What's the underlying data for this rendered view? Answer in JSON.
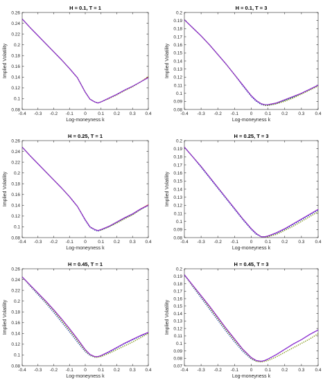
{
  "chart_data": [
    {
      "type": "line",
      "title": "H = 0.1, T = 1",
      "xlabel": "Log-moneyness k",
      "ylabel": "Implied Volatility",
      "xlim": [
        -0.4,
        0.4
      ],
      "ylim": [
        0.08,
        0.26
      ],
      "xticks": [
        "-0.4",
        "-0.3",
        "-0.2",
        "-0.1",
        "0",
        "0.1",
        "0.2",
        "0.3",
        "0.4"
      ],
      "yticks": [
        "0.08",
        "0.1",
        "0.12",
        "0.14",
        "0.16",
        "0.18",
        "0.2",
        "0.22",
        "0.24",
        "0.26"
      ],
      "grid": false,
      "x": [
        -0.4,
        -0.35,
        -0.3,
        -0.25,
        -0.2,
        -0.15,
        -0.1,
        -0.05,
        0,
        0.03,
        0.06,
        0.08,
        0.1,
        0.15,
        0.2,
        0.25,
        0.3,
        0.35,
        0.4
      ],
      "series": [
        {
          "color": "#e41a1c",
          "style": "solid",
          "values": [
            0.248,
            0.232,
            0.217,
            0.202,
            0.187,
            0.172,
            0.156,
            0.139,
            0.112,
            0.099,
            0.094,
            0.092,
            0.094,
            0.101,
            0.108,
            0.116,
            0.123,
            0.131,
            0.14
          ]
        },
        {
          "color": "#2040c0",
          "style": "dotted",
          "values": [
            0.248,
            0.232,
            0.217,
            0.202,
            0.187,
            0.172,
            0.156,
            0.139,
            0.112,
            0.099,
            0.094,
            0.092,
            0.094,
            0.101,
            0.108,
            0.116,
            0.123,
            0.131,
            0.14
          ]
        },
        {
          "color": "#2ca02c",
          "style": "dotted",
          "values": [
            0.248,
            0.232,
            0.217,
            0.202,
            0.187,
            0.172,
            0.156,
            0.139,
            0.112,
            0.099,
            0.094,
            0.092,
            0.094,
            0.1,
            0.107,
            0.115,
            0.122,
            0.131,
            0.14
          ]
        },
        {
          "color": "#9a9a20",
          "style": "dotted",
          "values": [
            0.248,
            0.232,
            0.217,
            0.202,
            0.187,
            0.172,
            0.156,
            0.139,
            0.112,
            0.099,
            0.094,
            0.092,
            0.094,
            0.1,
            0.107,
            0.115,
            0.122,
            0.131,
            0.141
          ]
        },
        {
          "color": "#8a2be2",
          "style": "solid",
          "values": [
            0.248,
            0.232,
            0.217,
            0.202,
            0.187,
            0.172,
            0.156,
            0.139,
            0.112,
            0.099,
            0.094,
            0.092,
            0.094,
            0.101,
            0.108,
            0.116,
            0.123,
            0.131,
            0.139
          ]
        }
      ]
    },
    {
      "type": "line",
      "title": "H = 0.1, T = 3",
      "xlabel": "Log-moneyness k",
      "ylabel": "Implied Volatility",
      "xlim": [
        -0.4,
        0.4
      ],
      "ylim": [
        0.08,
        0.2
      ],
      "xticks": [
        "-0.4",
        "-0.3",
        "-0.2",
        "-0.1",
        "0",
        "0.1",
        "0.2",
        "0.3",
        "0.4"
      ],
      "yticks": [
        "0.08",
        "0.09",
        "0.1",
        "0.11",
        "0.12",
        "0.13",
        "0.14",
        "0.15",
        "0.16",
        "0.17",
        "0.18",
        "0.19",
        "0.2"
      ],
      "grid": false,
      "x": [
        -0.4,
        -0.35,
        -0.3,
        -0.25,
        -0.2,
        -0.15,
        -0.1,
        -0.05,
        0,
        0.03,
        0.06,
        0.08,
        0.1,
        0.15,
        0.2,
        0.25,
        0.3,
        0.35,
        0.4
      ],
      "series": [
        {
          "color": "#e41a1c",
          "style": "solid",
          "values": [
            0.191,
            0.181,
            0.171,
            0.16,
            0.148,
            0.136,
            0.123,
            0.11,
            0.097,
            0.091,
            0.087,
            0.086,
            0.086,
            0.088,
            0.092,
            0.096,
            0.1,
            0.105,
            0.11
          ]
        },
        {
          "color": "#2040c0",
          "style": "dotted",
          "values": [
            0.191,
            0.181,
            0.171,
            0.16,
            0.148,
            0.136,
            0.123,
            0.109,
            0.096,
            0.09,
            0.086,
            0.085,
            0.085,
            0.087,
            0.091,
            0.095,
            0.1,
            0.105,
            0.11
          ]
        },
        {
          "color": "#2ca02c",
          "style": "dotted",
          "values": [
            0.191,
            0.181,
            0.171,
            0.16,
            0.148,
            0.136,
            0.123,
            0.11,
            0.097,
            0.091,
            0.087,
            0.086,
            0.085,
            0.087,
            0.091,
            0.095,
            0.099,
            0.104,
            0.109
          ]
        },
        {
          "color": "#9a9a20",
          "style": "dotted",
          "values": [
            0.191,
            0.181,
            0.171,
            0.16,
            0.148,
            0.136,
            0.123,
            0.11,
            0.097,
            0.091,
            0.087,
            0.085,
            0.085,
            0.087,
            0.09,
            0.094,
            0.099,
            0.104,
            0.109
          ]
        },
        {
          "color": "#8a2be2",
          "style": "solid",
          "values": [
            0.191,
            0.181,
            0.171,
            0.16,
            0.148,
            0.136,
            0.123,
            0.11,
            0.097,
            0.091,
            0.087,
            0.086,
            0.086,
            0.088,
            0.092,
            0.096,
            0.1,
            0.105,
            0.11
          ]
        }
      ]
    },
    {
      "type": "line",
      "title": "H = 0.25, T = 1",
      "xlabel": "Log-moneyness k",
      "ylabel": "Implied Volatility",
      "xlim": [
        -0.4,
        0.4
      ],
      "ylim": [
        0.08,
        0.26
      ],
      "xticks": [
        "-0.4",
        "-0.3",
        "-0.2",
        "-0.1",
        "0",
        "0.1",
        "0.2",
        "0.3",
        "0.4"
      ],
      "yticks": [
        "0.08",
        "0.1",
        "0.12",
        "0.14",
        "0.16",
        "0.18",
        "0.2",
        "0.22",
        "0.24",
        "0.26"
      ],
      "grid": false,
      "x": [
        -0.4,
        -0.35,
        -0.3,
        -0.25,
        -0.2,
        -0.15,
        -0.1,
        -0.05,
        0,
        0.03,
        0.06,
        0.08,
        0.1,
        0.15,
        0.2,
        0.25,
        0.3,
        0.35,
        0.4
      ],
      "series": [
        {
          "color": "#e41a1c",
          "style": "solid",
          "values": [
            0.248,
            0.232,
            0.217,
            0.202,
            0.187,
            0.172,
            0.156,
            0.138,
            0.113,
            0.1,
            0.095,
            0.093,
            0.095,
            0.101,
            0.109,
            0.117,
            0.124,
            0.133,
            0.141
          ]
        },
        {
          "color": "#2040c0",
          "style": "dotted",
          "values": [
            0.248,
            0.232,
            0.217,
            0.202,
            0.187,
            0.172,
            0.156,
            0.138,
            0.112,
            0.099,
            0.094,
            0.092,
            0.094,
            0.1,
            0.108,
            0.116,
            0.123,
            0.132,
            0.14
          ]
        },
        {
          "color": "#2ca02c",
          "style": "dotted",
          "values": [
            0.248,
            0.232,
            0.217,
            0.202,
            0.187,
            0.172,
            0.156,
            0.138,
            0.113,
            0.1,
            0.095,
            0.093,
            0.094,
            0.1,
            0.107,
            0.115,
            0.123,
            0.132,
            0.14
          ]
        },
        {
          "color": "#9a9a20",
          "style": "dotted",
          "values": [
            0.248,
            0.232,
            0.217,
            0.202,
            0.187,
            0.172,
            0.156,
            0.138,
            0.113,
            0.1,
            0.095,
            0.093,
            0.094,
            0.1,
            0.107,
            0.115,
            0.122,
            0.132,
            0.141
          ]
        },
        {
          "color": "#8a2be2",
          "style": "solid",
          "values": [
            0.248,
            0.232,
            0.217,
            0.202,
            0.187,
            0.172,
            0.156,
            0.138,
            0.113,
            0.1,
            0.095,
            0.093,
            0.095,
            0.101,
            0.109,
            0.117,
            0.124,
            0.133,
            0.14
          ]
        }
      ]
    },
    {
      "type": "line",
      "title": "H = 0.25, T = 3",
      "xlabel": "Log-moneyness k",
      "ylabel": "Implied Volatility",
      "xlim": [
        -0.4,
        0.4
      ],
      "ylim": [
        0.08,
        0.2
      ],
      "xticks": [
        "-0.4",
        "-0.3",
        "-0.2",
        "-0.1",
        "0",
        "0.1",
        "0.2",
        "0.3",
        "0.4"
      ],
      "yticks": [
        "0.08",
        "0.09",
        "0.1",
        "0.11",
        "0.12",
        "0.13",
        "0.14",
        "0.15",
        "0.16",
        "0.17",
        "0.18",
        "0.19",
        "0.2"
      ],
      "grid": false,
      "x": [
        -0.4,
        -0.35,
        -0.3,
        -0.25,
        -0.2,
        -0.15,
        -0.1,
        -0.05,
        0,
        0.03,
        0.06,
        0.08,
        0.1,
        0.15,
        0.2,
        0.25,
        0.3,
        0.35,
        0.4
      ],
      "series": [
        {
          "color": "#e41a1c",
          "style": "solid",
          "values": [
            0.192,
            0.18,
            0.168,
            0.155,
            0.142,
            0.129,
            0.116,
            0.103,
            0.091,
            0.085,
            0.081,
            0.081,
            0.082,
            0.086,
            0.091,
            0.097,
            0.103,
            0.109,
            0.115
          ]
        },
        {
          "color": "#2040c0",
          "style": "dotted",
          "values": [
            0.192,
            0.18,
            0.167,
            0.154,
            0.141,
            0.128,
            0.115,
            0.102,
            0.09,
            0.084,
            0.081,
            0.081,
            0.081,
            0.085,
            0.09,
            0.096,
            0.102,
            0.108,
            0.114
          ]
        },
        {
          "color": "#2ca02c",
          "style": "dotted",
          "values": [
            0.192,
            0.18,
            0.168,
            0.155,
            0.142,
            0.129,
            0.116,
            0.103,
            0.091,
            0.085,
            0.081,
            0.081,
            0.081,
            0.084,
            0.089,
            0.094,
            0.1,
            0.106,
            0.112
          ]
        },
        {
          "color": "#9a9a20",
          "style": "dotted",
          "values": [
            0.192,
            0.18,
            0.168,
            0.155,
            0.142,
            0.129,
            0.116,
            0.103,
            0.091,
            0.085,
            0.081,
            0.081,
            0.081,
            0.084,
            0.089,
            0.094,
            0.1,
            0.106,
            0.112
          ]
        },
        {
          "color": "#8a2be2",
          "style": "solid",
          "values": [
            0.192,
            0.18,
            0.168,
            0.155,
            0.142,
            0.129,
            0.116,
            0.103,
            0.091,
            0.085,
            0.081,
            0.081,
            0.082,
            0.086,
            0.091,
            0.097,
            0.103,
            0.109,
            0.115
          ]
        }
      ]
    },
    {
      "type": "line",
      "title": "H = 0.45, T = 1",
      "xlabel": "Log-moneyness k",
      "ylabel": "Implied Volatility",
      "xlim": [
        -0.4,
        0.4
      ],
      "ylim": [
        0.08,
        0.26
      ],
      "xticks": [
        "-0.4",
        "-0.3",
        "-0.2",
        "-0.1",
        "0",
        "0.1",
        "0.2",
        "0.3",
        "0.4"
      ],
      "yticks": [
        "0.08",
        "0.1",
        "0.12",
        "0.14",
        "0.16",
        "0.18",
        "0.2",
        "0.22",
        "0.24",
        "0.26"
      ],
      "grid": false,
      "x": [
        -0.4,
        -0.35,
        -0.3,
        -0.25,
        -0.2,
        -0.15,
        -0.1,
        -0.05,
        0,
        0.03,
        0.06,
        0.08,
        0.1,
        0.15,
        0.2,
        0.25,
        0.3,
        0.35,
        0.4
      ],
      "series": [
        {
          "color": "#e41a1c",
          "style": "solid",
          "values": [
            0.245,
            0.23,
            0.215,
            0.2,
            0.184,
            0.167,
            0.149,
            0.13,
            0.11,
            0.101,
            0.097,
            0.097,
            0.099,
            0.106,
            0.114,
            0.122,
            0.129,
            0.136,
            0.142
          ]
        },
        {
          "color": "#2040c0",
          "style": "dotted",
          "values": [
            0.245,
            0.228,
            0.212,
            0.196,
            0.179,
            0.161,
            0.143,
            0.124,
            0.106,
            0.099,
            0.096,
            0.096,
            0.098,
            0.105,
            0.113,
            0.121,
            0.128,
            0.135,
            0.141
          ]
        },
        {
          "color": "#2ca02c",
          "style": "dotted",
          "values": [
            0.245,
            0.229,
            0.214,
            0.198,
            0.182,
            0.164,
            0.146,
            0.127,
            0.108,
            0.1,
            0.096,
            0.096,
            0.097,
            0.103,
            0.11,
            0.117,
            0.124,
            0.132,
            0.14
          ]
        },
        {
          "color": "#9a9a20",
          "style": "dotted",
          "values": [
            0.245,
            0.229,
            0.214,
            0.198,
            0.182,
            0.164,
            0.146,
            0.127,
            0.108,
            0.1,
            0.096,
            0.096,
            0.097,
            0.103,
            0.11,
            0.117,
            0.124,
            0.132,
            0.14
          ]
        },
        {
          "color": "#8a2be2",
          "style": "solid",
          "values": [
            0.245,
            0.23,
            0.215,
            0.2,
            0.184,
            0.167,
            0.149,
            0.13,
            0.11,
            0.101,
            0.097,
            0.097,
            0.099,
            0.106,
            0.114,
            0.122,
            0.129,
            0.136,
            0.142
          ]
        }
      ]
    },
    {
      "type": "line",
      "title": "H = 0.45, T = 3",
      "xlabel": "Log-moneyness k",
      "ylabel": "Implied Volatility",
      "xlim": [
        -0.4,
        0.4
      ],
      "ylim": [
        0.07,
        0.2
      ],
      "xticks": [
        "-0.4",
        "-0.3",
        "-0.2",
        "-0.1",
        "0",
        "0.1",
        "0.2",
        "0.3",
        "0.4"
      ],
      "yticks": [
        "0.07",
        "0.08",
        "0.09",
        "0.1",
        "0.11",
        "0.12",
        "0.13",
        "0.14",
        "0.15",
        "0.16",
        "0.17",
        "0.18",
        "0.19",
        "0.2"
      ],
      "grid": false,
      "x": [
        -0.4,
        -0.35,
        -0.3,
        -0.25,
        -0.2,
        -0.15,
        -0.1,
        -0.05,
        0,
        0.03,
        0.06,
        0.08,
        0.1,
        0.15,
        0.2,
        0.25,
        0.3,
        0.35,
        0.4
      ],
      "series": [
        {
          "color": "#e41a1c",
          "style": "solid",
          "values": [
            0.192,
            0.178,
            0.164,
            0.15,
            0.135,
            0.12,
            0.106,
            0.092,
            0.081,
            0.077,
            0.076,
            0.077,
            0.079,
            0.085,
            0.092,
            0.099,
            0.105,
            0.112,
            0.118
          ]
        },
        {
          "color": "#2040c0",
          "style": "dotted",
          "values": [
            0.192,
            0.176,
            0.161,
            0.146,
            0.131,
            0.116,
            0.102,
            0.089,
            0.079,
            0.076,
            0.076,
            0.077,
            0.079,
            0.085,
            0.092,
            0.099,
            0.105,
            0.112,
            0.118
          ]
        },
        {
          "color": "#2ca02c",
          "style": "dotted",
          "values": [
            0.192,
            0.177,
            0.163,
            0.148,
            0.133,
            0.118,
            0.104,
            0.091,
            0.08,
            0.076,
            0.075,
            0.076,
            0.077,
            0.082,
            0.088,
            0.094,
            0.1,
            0.106,
            0.113
          ]
        },
        {
          "color": "#9a9a20",
          "style": "dotted",
          "values": [
            0.192,
            0.177,
            0.163,
            0.148,
            0.133,
            0.118,
            0.104,
            0.091,
            0.08,
            0.076,
            0.075,
            0.076,
            0.077,
            0.082,
            0.088,
            0.094,
            0.1,
            0.106,
            0.113
          ]
        },
        {
          "color": "#8a2be2",
          "style": "solid",
          "values": [
            0.192,
            0.178,
            0.164,
            0.15,
            0.135,
            0.12,
            0.106,
            0.092,
            0.081,
            0.077,
            0.076,
            0.077,
            0.079,
            0.085,
            0.092,
            0.099,
            0.105,
            0.112,
            0.118
          ]
        }
      ]
    }
  ]
}
